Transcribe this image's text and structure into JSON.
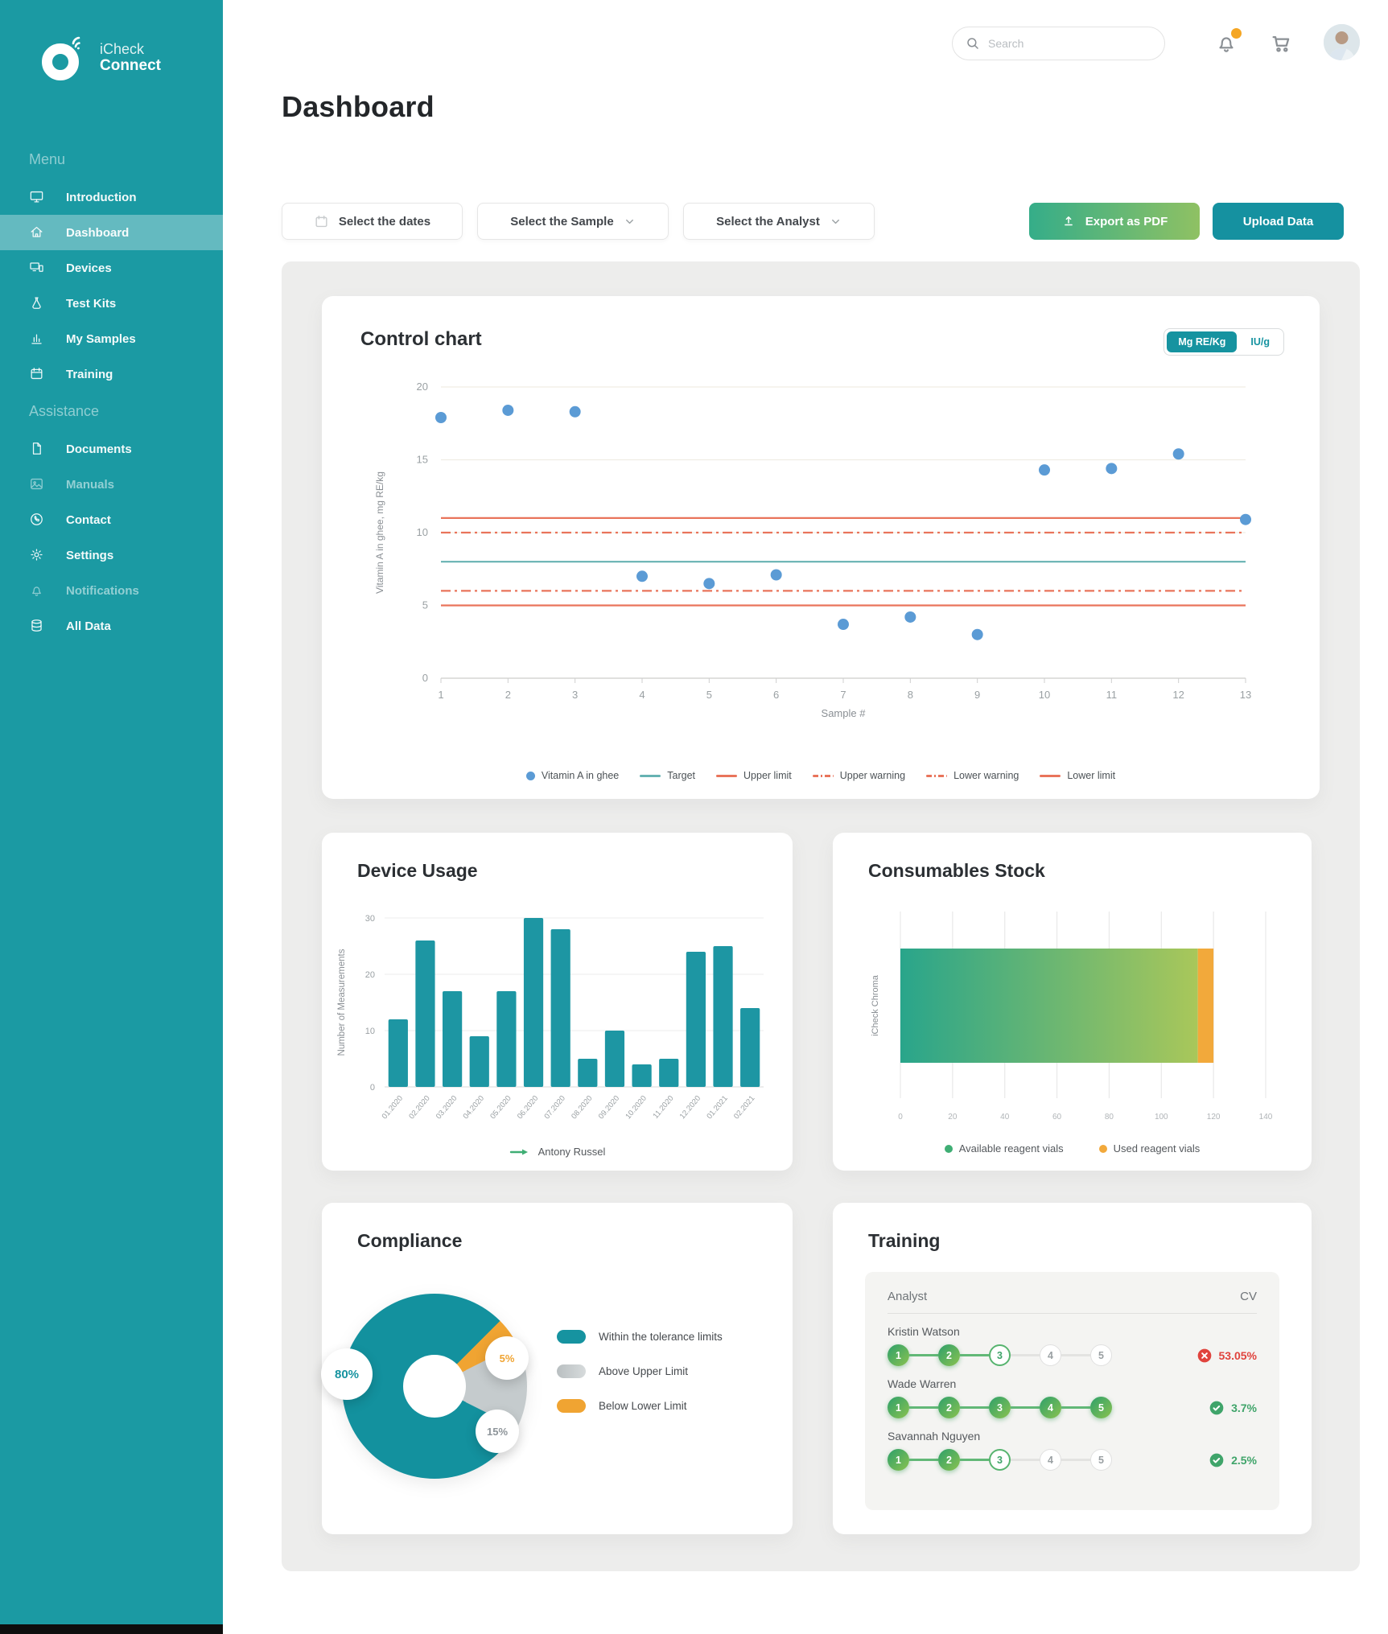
{
  "sidebar": {
    "brand_line1": "iCheck",
    "brand_line2": "Connect",
    "sections": [
      {
        "title": "Menu",
        "items": [
          {
            "label": "Introduction",
            "icon": "monitor-icon"
          },
          {
            "label": "Dashboard",
            "icon": "home-icon",
            "active": true
          },
          {
            "label": "Devices",
            "icon": "devices-icon"
          },
          {
            "label": "Test Kits",
            "icon": "flask-icon"
          },
          {
            "label": "My Samples",
            "icon": "samples-icon"
          },
          {
            "label": "Training",
            "icon": "calendar-icon"
          }
        ]
      },
      {
        "title": "Assistance",
        "items": [
          {
            "label": "Documents",
            "icon": "document-icon"
          },
          {
            "label": "Manuals",
            "icon": "manual-icon",
            "dimmed": true
          },
          {
            "label": "Contact",
            "icon": "contact-icon"
          },
          {
            "label": "Settings",
            "icon": "settings-icon"
          },
          {
            "label": "Notifications",
            "icon": "bell-icon",
            "dimmed": true
          },
          {
            "label": "All Data",
            "icon": "database-icon"
          }
        ]
      }
    ]
  },
  "header": {
    "search_placeholder": "Search",
    "page_title": "Dashboard"
  },
  "toolbar": {
    "date_filter_label": "Select the dates",
    "sample_filter_label": "Select the Sample",
    "analyst_filter_label": "Select the Analyst",
    "export_label": "Export as PDF",
    "upload_label": "Upload Data"
  },
  "cards": {
    "control_chart": {
      "title": "Control chart",
      "unit_toggle_active": "Mg RE/Kg",
      "unit_toggle_inactive": "IU/g"
    },
    "device_usage": {
      "title": "Device Usage"
    },
    "consumables": {
      "title": "Consumables Stock"
    },
    "compliance": {
      "title": "Compliance"
    },
    "training": {
      "title": "Training",
      "col_analyst": "Analyst",
      "col_cv": "CV",
      "rows": [
        {
          "name": "Kristin Watson",
          "steps_total": 5,
          "steps_completed": 2,
          "current_step": 3,
          "cv": "53.05%",
          "status": "fail"
        },
        {
          "name": "Wade Warren",
          "steps_total": 5,
          "steps_completed": 5,
          "current_step": 0,
          "cv": "3.7%",
          "status": "pass"
        },
        {
          "name": "Savannah Nguyen",
          "steps_total": 5,
          "steps_completed": 2,
          "current_step": 3,
          "cv": "2.5%",
          "status": "pass"
        }
      ]
    }
  },
  "chart_data": [
    {
      "type": "scatter",
      "title": "Control chart",
      "x": [
        1,
        2,
        3,
        4,
        5,
        6,
        7,
        8,
        9,
        10,
        11,
        12,
        13
      ],
      "series": [
        {
          "name": "Vitamin A in ghee",
          "values": [
            17.9,
            18.4,
            18.3,
            7.0,
            6.5,
            7.1,
            3.7,
            4.2,
            3.0,
            14.3,
            14.4,
            15.4,
            10.9
          ],
          "color": "#5b9bd5"
        }
      ],
      "reference_lines": [
        {
          "name": "Target",
          "value": 8,
          "style": "solid",
          "color": "#66b2b2"
        },
        {
          "name": "Upper limit",
          "value": 11,
          "style": "solid",
          "color": "#e9745b"
        },
        {
          "name": "Upper warning",
          "value": 10,
          "style": "dashdot",
          "color": "#e9745b"
        },
        {
          "name": "Lower warning",
          "value": 6,
          "style": "dashdot",
          "color": "#e9745b"
        },
        {
          "name": "Lower limit",
          "value": 5,
          "style": "solid",
          "color": "#e9745b"
        }
      ],
      "xlabel": "Sample #",
      "ylabel": "Vitamin A in ghee, mg RE/kg",
      "ylim": [
        0,
        20
      ],
      "yticks": [
        0,
        5,
        10,
        15,
        20
      ],
      "legend": [
        "Vitamin A in ghee",
        "Target",
        "Upper limit",
        "Upper warning",
        "Lower warning",
        "Lower limit"
      ],
      "legend_position": "bottom",
      "grid": true
    },
    {
      "type": "bar",
      "title": "Device Usage",
      "categories": [
        "01.2020",
        "02.2020",
        "03.2020",
        "04.2020",
        "05.2020",
        "06.2020",
        "07.2020",
        "08.2020",
        "09.2020",
        "10.2020",
        "11.2020",
        "12.2020",
        "01.2021",
        "02.2021"
      ],
      "values": [
        12,
        26,
        17,
        9,
        17,
        30,
        28,
        5,
        10,
        4,
        5,
        24,
        25,
        14
      ],
      "bar_color": "#1d96a3",
      "xlabel": "",
      "ylabel": "Number of Measurements",
      "ylim": [
        0,
        30
      ],
      "yticks": [
        0,
        10,
        20,
        30
      ],
      "legend": [
        "Antony Russel"
      ],
      "legend_position": "bottom",
      "grid": true
    },
    {
      "type": "bar",
      "orientation": "horizontal",
      "title": "Consumables Stock",
      "categories": [
        "iCheck Chroma"
      ],
      "series": [
        {
          "name": "Available reagent vials",
          "values": [
            114
          ],
          "color_start": "#29a58b",
          "color_end": "#a9c75a",
          "legend_color": "#3fae74"
        },
        {
          "name": "Used reagent vials",
          "values": [
            6
          ],
          "color": "#f2a93b"
        }
      ],
      "stacked": true,
      "xlim": [
        0,
        140
      ],
      "xticks": [
        0,
        20,
        40,
        60,
        80,
        100,
        120,
        140
      ],
      "legend_position": "bottom",
      "grid": true
    },
    {
      "type": "pie",
      "title": "Compliance",
      "donut": true,
      "start_angle_deg": 45,
      "slices": [
        {
          "label": "Within the tolerance limits",
          "value": 80,
          "badge": "80%",
          "color": "#13919e"
        },
        {
          "label": "Above Upper Limit",
          "value": 15,
          "badge": "15%",
          "color": "#c5cbcd"
        },
        {
          "label": "Below Lower Limit",
          "value": 5,
          "badge": "5%",
          "color": "#f0a432"
        }
      ],
      "draw_order": [
        "Below Lower Limit",
        "Above Upper Limit",
        "Within the tolerance limits"
      ],
      "legend_position": "right"
    }
  ]
}
